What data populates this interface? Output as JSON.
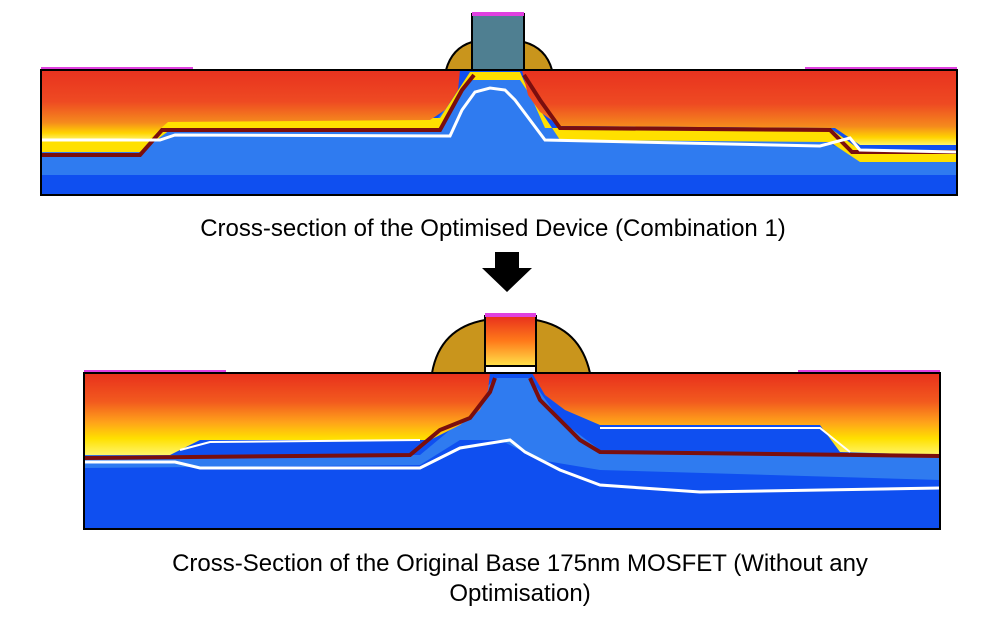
{
  "top_panel": {
    "caption": "Cross-section of the Optimised Device (Combination 1)"
  },
  "bottom_panel": {
    "caption": "Cross-Section of the Original Base 175nm MOSFET (Without any Optimisation)"
  },
  "colors": {
    "hot_red": "#e8321f",
    "orange": "#f47a1a",
    "yellow": "#ffe000",
    "pale_yellow": "#fff56a",
    "light_blue": "#2f7bf0",
    "substrate_blue": "#0f4ff0",
    "junction_line": "#7a0e0e",
    "contour_white": "#ffffff",
    "gate_cap": "#e040e0",
    "spacer": "#c9951c",
    "gate_top": "#4f7f91",
    "arrow": "#000000"
  }
}
